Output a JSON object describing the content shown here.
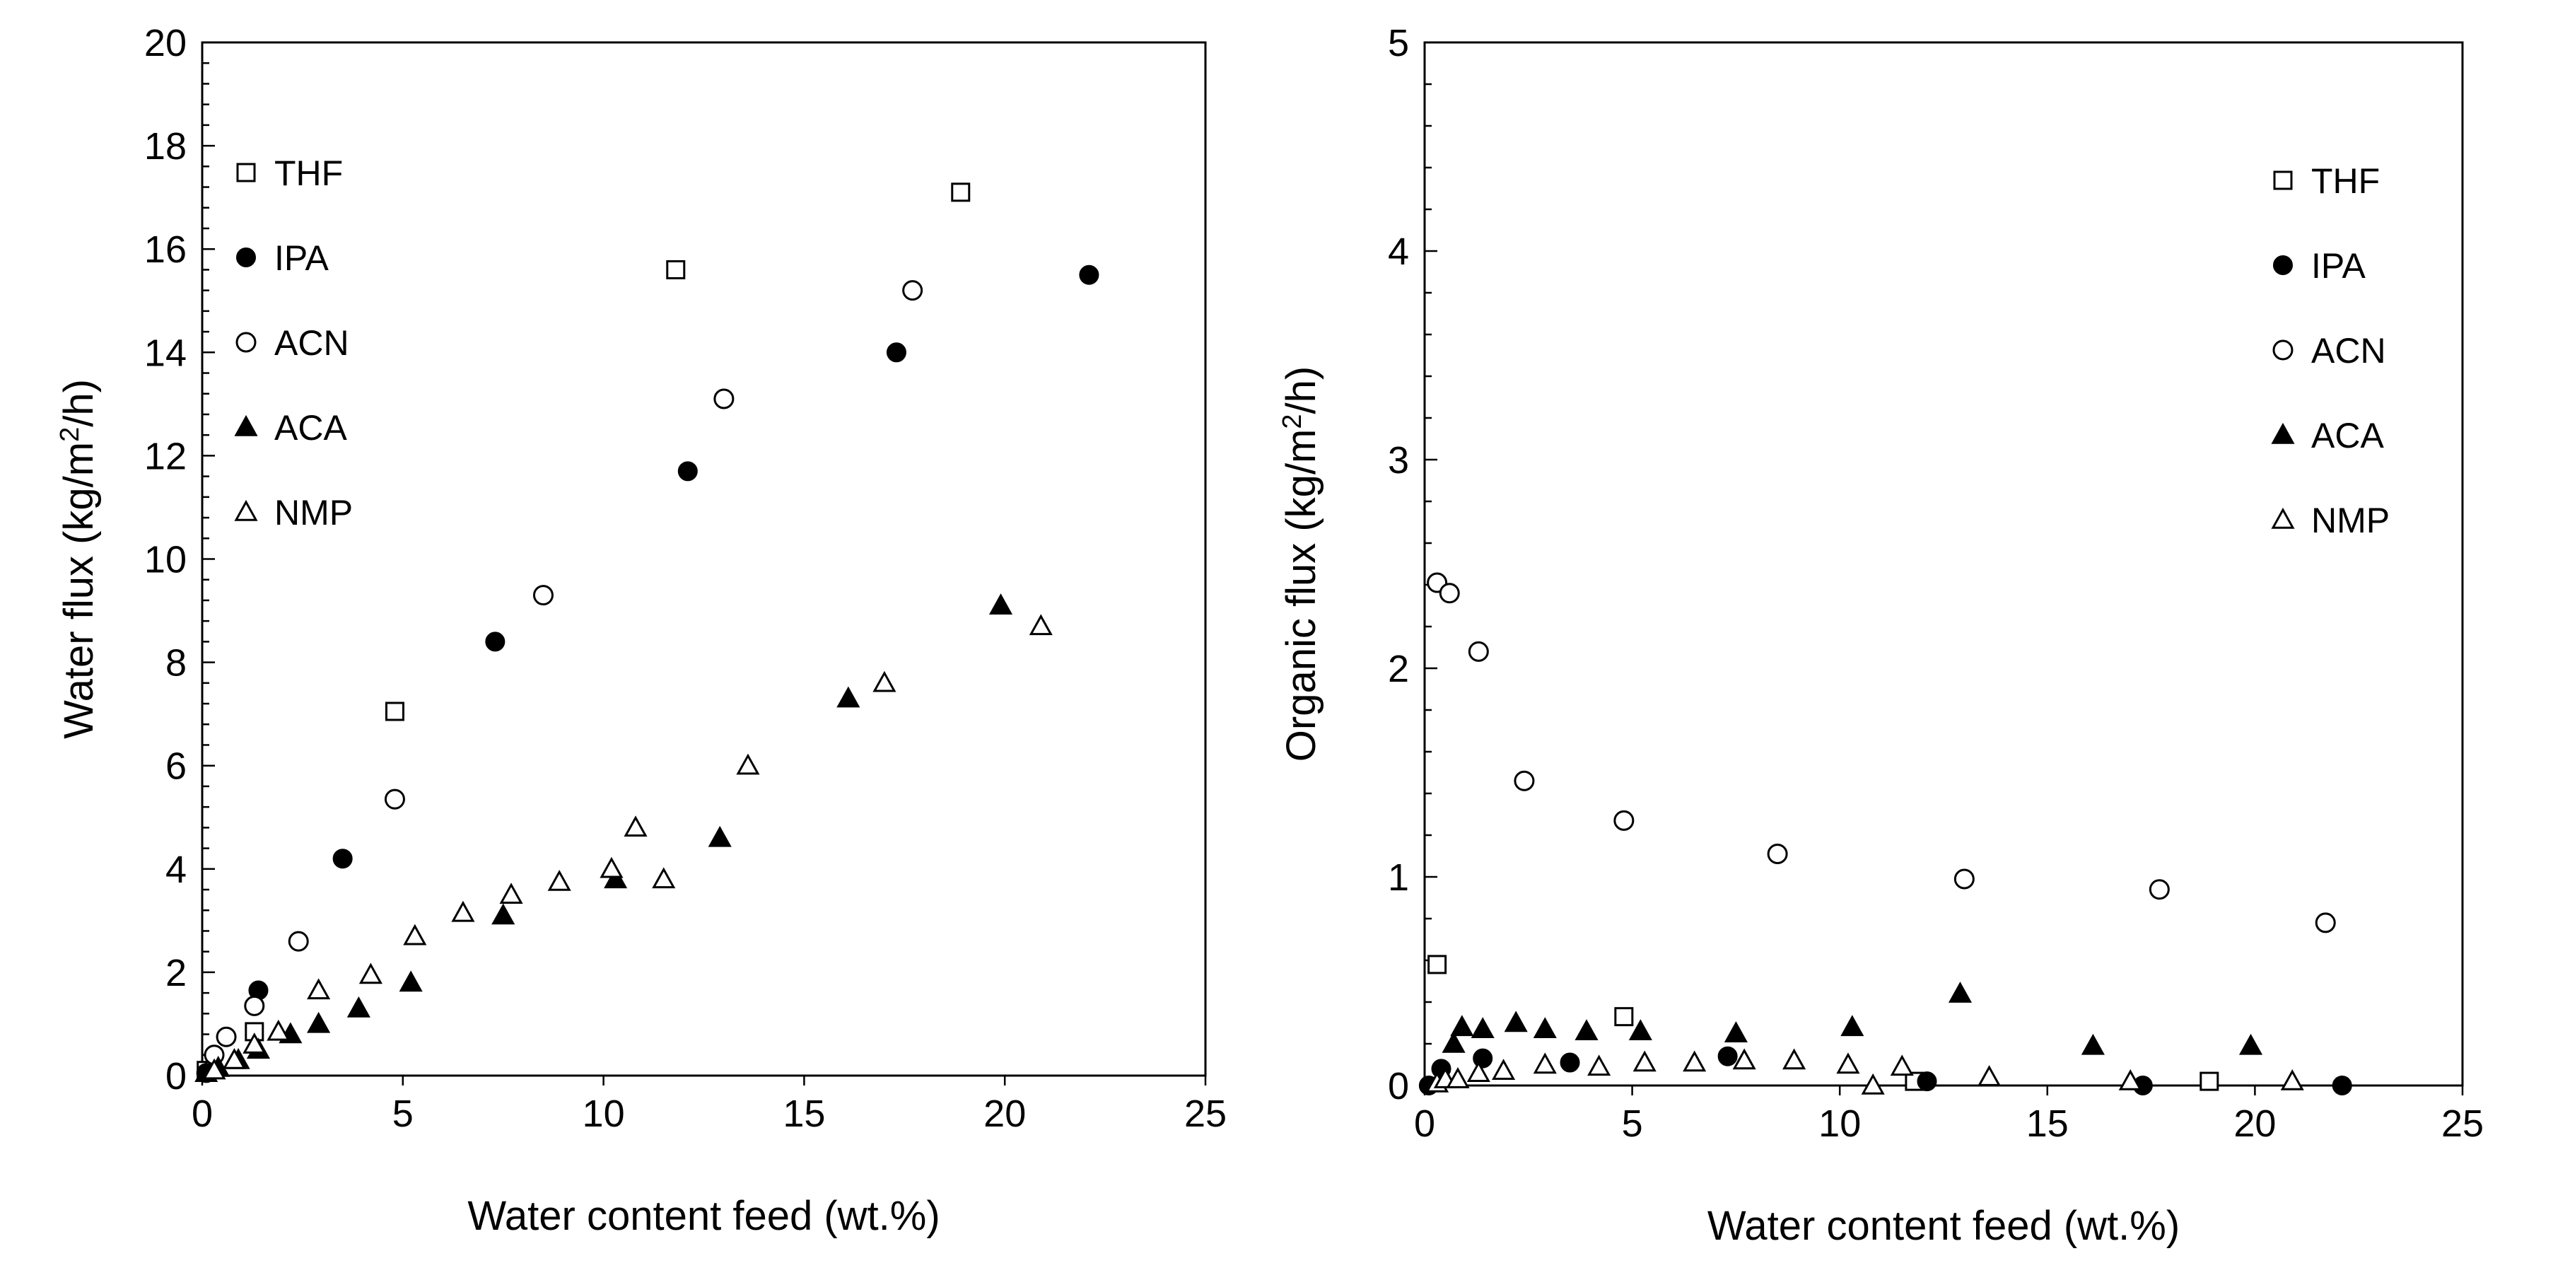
{
  "chart_data": [
    {
      "type": "scatter",
      "xlabel": "Water content feed (wt.%)",
      "ylabel": "Water flux (kg/m²/h)",
      "ylabel_base": "Water flux (kg/m",
      "ylabel_sup": "2",
      "ylabel_tail": "/h)",
      "xlim": [
        0,
        25
      ],
      "ylim": [
        0,
        20
      ],
      "xticks": [
        "0",
        "5",
        "10",
        "15",
        "20",
        "25"
      ],
      "yticks": [
        "0",
        "2",
        "4",
        "6",
        "8",
        "10",
        "12",
        "14",
        "16",
        "18",
        "20"
      ],
      "grid": false,
      "legend_position": "top-left",
      "series": [
        {
          "name": "THF",
          "marker": "square-open",
          "points": [
            [
              0.1,
              0.1
            ],
            [
              1.3,
              0.85
            ],
            [
              4.8,
              7.05
            ],
            [
              11.8,
              15.6
            ],
            [
              18.9,
              17.1
            ]
          ]
        },
        {
          "name": "IPA",
          "marker": "circle-filled",
          "points": [
            [
              0.1,
              0.05
            ],
            [
              1.4,
              1.65
            ],
            [
              3.5,
              4.2
            ],
            [
              7.3,
              8.4
            ],
            [
              12.1,
              11.7
            ],
            [
              17.3,
              14.0
            ],
            [
              22.1,
              15.5
            ]
          ]
        },
        {
          "name": "ACN",
          "marker": "circle-open",
          "points": [
            [
              0.3,
              0.4
            ],
            [
              0.6,
              0.75
            ],
            [
              1.3,
              1.35
            ],
            [
              2.4,
              2.6
            ],
            [
              4.8,
              5.35
            ],
            [
              8.5,
              9.3
            ],
            [
              13.0,
              13.1
            ],
            [
              17.7,
              15.2
            ]
          ]
        },
        {
          "name": "ACA",
          "marker": "triangle-filled",
          "points": [
            [
              0.1,
              0.05
            ],
            [
              0.4,
              0.15
            ],
            [
              0.9,
              0.3
            ],
            [
              1.4,
              0.5
            ],
            [
              2.2,
              0.8
            ],
            [
              2.9,
              1.0
            ],
            [
              3.9,
              1.3
            ],
            [
              5.2,
              1.8
            ],
            [
              7.5,
              3.1
            ],
            [
              10.3,
              3.8
            ],
            [
              12.9,
              4.6
            ],
            [
              16.1,
              7.3
            ],
            [
              19.9,
              9.1
            ]
          ]
        },
        {
          "name": "NMP",
          "marker": "triangle-open",
          "points": [
            [
              0.3,
              0.1
            ],
            [
              0.8,
              0.3
            ],
            [
              1.3,
              0.6
            ],
            [
              1.9,
              0.85
            ],
            [
              2.9,
              1.65
            ],
            [
              4.2,
              1.95
            ],
            [
              5.3,
              2.7
            ],
            [
              6.5,
              3.15
            ],
            [
              7.7,
              3.5
            ],
            [
              8.9,
              3.75
            ],
            [
              10.2,
              4.0
            ],
            [
              10.8,
              4.8
            ],
            [
              11.5,
              3.8
            ],
            [
              13.6,
              6.0
            ],
            [
              17.0,
              7.6
            ],
            [
              20.9,
              8.7
            ]
          ]
        }
      ]
    },
    {
      "type": "scatter",
      "xlabel": "Water content feed (wt.%)",
      "ylabel": "Organic flux (kg/m²/h)",
      "ylabel_base": "Organic flux (kg/m",
      "ylabel_sup": "2",
      "ylabel_tail": "/h)",
      "xlim": [
        0,
        25
      ],
      "ylim": [
        0,
        5
      ],
      "xticks": [
        "0",
        "5",
        "10",
        "15",
        "20",
        "25"
      ],
      "yticks": [
        "0",
        "1",
        "2",
        "3",
        "4",
        "5"
      ],
      "grid": false,
      "legend_position": "top-right",
      "series": [
        {
          "name": "THF",
          "marker": "square-open",
          "points": [
            [
              0.3,
              0.58
            ],
            [
              4.8,
              0.33
            ],
            [
              11.8,
              0.02
            ],
            [
              18.9,
              0.02
            ]
          ]
        },
        {
          "name": "IPA",
          "marker": "circle-filled",
          "points": [
            [
              0.1,
              0.0
            ],
            [
              0.4,
              0.08
            ],
            [
              1.4,
              0.13
            ],
            [
              3.5,
              0.11
            ],
            [
              7.3,
              0.14
            ],
            [
              12.1,
              0.02
            ],
            [
              17.3,
              0.0
            ],
            [
              22.1,
              0.0
            ]
          ]
        },
        {
          "name": "ACN",
          "marker": "circle-open",
          "points": [
            [
              0.3,
              2.41
            ],
            [
              0.6,
              2.36
            ],
            [
              1.3,
              2.08
            ],
            [
              2.4,
              1.46
            ],
            [
              4.8,
              1.27
            ],
            [
              8.5,
              1.11
            ],
            [
              13.0,
              0.99
            ],
            [
              17.7,
              0.94
            ],
            [
              21.7,
              0.78
            ]
          ]
        },
        {
          "name": "ACA",
          "marker": "triangle-filled",
          "points": [
            [
              0.7,
              0.2
            ],
            [
              0.9,
              0.28
            ],
            [
              1.4,
              0.27
            ],
            [
              2.2,
              0.3
            ],
            [
              2.9,
              0.27
            ],
            [
              3.9,
              0.26
            ],
            [
              5.2,
              0.26
            ],
            [
              7.5,
              0.25
            ],
            [
              10.3,
              0.28
            ],
            [
              12.9,
              0.44
            ],
            [
              16.1,
              0.19
            ],
            [
              19.9,
              0.19
            ]
          ]
        },
        {
          "name": "NMP",
          "marker": "triangle-open",
          "points": [
            [
              0.3,
              0.01
            ],
            [
              0.5,
              0.03
            ],
            [
              0.8,
              0.03
            ],
            [
              1.3,
              0.06
            ],
            [
              1.9,
              0.07
            ],
            [
              2.9,
              0.1
            ],
            [
              4.2,
              0.09
            ],
            [
              5.3,
              0.11
            ],
            [
              6.5,
              0.11
            ],
            [
              7.7,
              0.12
            ],
            [
              8.9,
              0.12
            ],
            [
              10.2,
              0.1
            ],
            [
              10.8,
              0.0
            ],
            [
              11.5,
              0.09
            ],
            [
              13.6,
              0.04
            ],
            [
              17.0,
              0.02
            ],
            [
              20.9,
              0.02
            ]
          ]
        }
      ]
    }
  ]
}
